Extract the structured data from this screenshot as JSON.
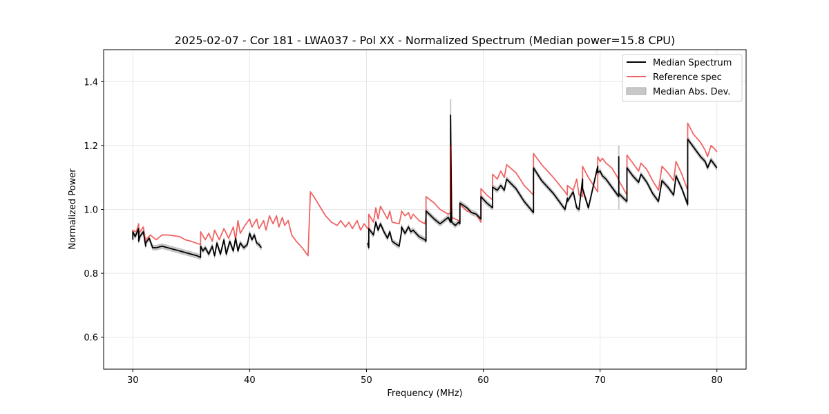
{
  "chart_data": {
    "type": "line",
    "title": "2025-02-07 - Cor 181 - LWA037 - Pol XX - Normalized Spectrum (Median power=15.8 CPU)",
    "xlabel": "Frequency (MHz)",
    "ylabel": "Normalized Power",
    "xlim": [
      27.5,
      82.5
    ],
    "ylim": [
      0.5,
      1.5
    ],
    "xticks": [
      30,
      40,
      50,
      60,
      70,
      80
    ],
    "yticks": [
      0.6,
      0.8,
      1.0,
      1.2,
      1.4
    ],
    "xtick_labels": [
      "30",
      "40",
      "50",
      "60",
      "70",
      "80"
    ],
    "ytick_labels": [
      "0.6",
      "0.8",
      "1.0",
      "1.2",
      "1.4"
    ],
    "grid": true,
    "legend_position": "top-right",
    "legend": [
      "Median Spectrum",
      "Reference spec",
      "Median Abs. Dev."
    ],
    "colors": {
      "median": "#000000",
      "reference": "#f06464",
      "mad": "#c8c8c8"
    },
    "series": [
      {
        "name": "Reference spec",
        "x": [
          30.0,
          30.0,
          30.3,
          30.5,
          30.5,
          30.6,
          30.9,
          31.1,
          31.1,
          31.5,
          32.0,
          32.5,
          33.0,
          34.0,
          34.5,
          35.0,
          35.8,
          35.8,
          36.2,
          36.5,
          36.8,
          37.0,
          37.4,
          37.8,
          38.2,
          38.6,
          38.8,
          39.0,
          39.2,
          39.6,
          40.0,
          40.2,
          40.6,
          40.8,
          41.2,
          41.4,
          41.7,
          42.0,
          42.3,
          42.5,
          42.8,
          43.0,
          43.3,
          43.6,
          44.0,
          44.5,
          45.0,
          45.2,
          45.2,
          45.5,
          46.0,
          46.5,
          47.0,
          47.5,
          47.8,
          48.2,
          48.5,
          48.8,
          49.2,
          49.5,
          49.8,
          50.1,
          50.2,
          50.2,
          50.6,
          50.8,
          51.0,
          51.2,
          51.5,
          51.8,
          52.0,
          52.2,
          52.8,
          53.0,
          53.0,
          53.3,
          53.6,
          53.8,
          54.0,
          54.5,
          55.0,
          55.1,
          55.1,
          55.8,
          56.3,
          57.0,
          57.2,
          57.2,
          57.3,
          57.6,
          57.9,
          58.0,
          58.0,
          58.6,
          59.0,
          59.4,
          59.8,
          59.8,
          60.3,
          60.8,
          60.8,
          61.2,
          61.5,
          61.8,
          62.0,
          62.8,
          63.5,
          64.3,
          64.3,
          65.0,
          66.0,
          67.0,
          67.2,
          67.2,
          67.7,
          68.0,
          68.2,
          68.5,
          68.5,
          69.0,
          69.8,
          69.8,
          70.0,
          70.2,
          70.5,
          71.0,
          71.5,
          71.6,
          72.0,
          72.3,
          72.3,
          72.8,
          73.3,
          73.5,
          74.0,
          74.5,
          75.0,
          75.3,
          75.8,
          76.3,
          76.5,
          77.0,
          77.5,
          77.5,
          78.0,
          78.6,
          79.0,
          79.2,
          79.5,
          79.8,
          80.0
        ],
        "y": [
          0.925,
          0.935,
          0.93,
          0.955,
          0.92,
          0.93,
          0.945,
          0.9,
          0.905,
          0.92,
          0.905,
          0.92,
          0.92,
          0.915,
          0.905,
          0.9,
          0.89,
          0.93,
          0.905,
          0.925,
          0.9,
          0.935,
          0.905,
          0.94,
          0.91,
          0.945,
          0.905,
          0.965,
          0.925,
          0.95,
          0.97,
          0.945,
          0.97,
          0.94,
          0.965,
          0.935,
          0.98,
          0.955,
          0.98,
          0.945,
          0.975,
          0.95,
          0.965,
          0.92,
          0.9,
          0.88,
          0.855,
          1.055,
          1.055,
          1.04,
          1.01,
          0.98,
          0.96,
          0.95,
          0.965,
          0.945,
          0.96,
          0.94,
          0.965,
          0.935,
          0.955,
          0.94,
          0.945,
          0.985,
          0.96,
          1.005,
          0.97,
          1.01,
          0.99,
          0.97,
          0.995,
          0.96,
          0.955,
          0.99,
          0.995,
          0.98,
          0.99,
          0.97,
          0.985,
          0.965,
          0.955,
          0.975,
          1.04,
          1.02,
          1.0,
          0.985,
          0.99,
          1.2,
          0.975,
          0.97,
          0.965,
          0.96,
          1.015,
          0.995,
          0.99,
          0.985,
          0.96,
          1.065,
          1.045,
          1.03,
          1.11,
          1.095,
          1.12,
          1.1,
          1.14,
          1.115,
          1.075,
          1.045,
          1.175,
          1.14,
          1.1,
          1.055,
          1.045,
          1.075,
          1.06,
          1.095,
          1.045,
          1.04,
          1.135,
          1.1,
          1.055,
          1.165,
          1.15,
          1.16,
          1.145,
          1.13,
          1.1,
          1.09,
          1.065,
          1.045,
          1.17,
          1.145,
          1.12,
          1.145,
          1.125,
          1.09,
          1.06,
          1.135,
          1.115,
          1.09,
          1.15,
          1.11,
          1.06,
          1.27,
          1.235,
          1.21,
          1.185,
          1.165,
          1.2,
          1.19,
          1.18
        ]
      },
      {
        "name": "Median Spectrum",
        "segments": [
          {
            "x": [
              30.0,
              30.0,
              30.2,
              30.5,
              30.5,
              30.6,
              30.9,
              31.1,
              31.1,
              31.4,
              31.7,
              32.0,
              32.5,
              33.0,
              33.5,
              34.0,
              34.5,
              35.0,
              35.5,
              35.8,
              35.8,
              36.0,
              36.2,
              36.5,
              36.8,
              37.0,
              37.2,
              37.5,
              37.8,
              38.0,
              38.3,
              38.6,
              38.8,
              39.0,
              39.2,
              39.5,
              39.8,
              40.0,
              40.2,
              40.4,
              40.6,
              40.8,
              41.0
            ],
            "y": [
              0.905,
              0.93,
              0.915,
              0.94,
              0.9,
              0.915,
              0.93,
              0.885,
              0.895,
              0.91,
              0.88,
              0.88,
              0.885,
              0.88,
              0.875,
              0.87,
              0.865,
              0.86,
              0.855,
              0.85,
              0.885,
              0.87,
              0.88,
              0.86,
              0.885,
              0.855,
              0.895,
              0.86,
              0.905,
              0.86,
              0.9,
              0.87,
              0.91,
              0.87,
              0.895,
              0.88,
              0.89,
              0.925,
              0.905,
              0.92,
              0.895,
              0.89,
              0.88
            ]
          },
          {
            "x": [
              50.1,
              50.2,
              50.2,
              50.6,
              50.8,
              51.0,
              51.2,
              51.5,
              51.8,
              52.0,
              52.2,
              52.8,
              53.0,
              53.0,
              53.3,
              53.6,
              53.8,
              54.0,
              54.5,
              55.0,
              55.1,
              55.1,
              55.8,
              56.3,
              57.0,
              57.2,
              57.2,
              57.3,
              57.6,
              57.9,
              58.0,
              58.0,
              58.6,
              59.0,
              59.4,
              59.8,
              59.8,
              60.3,
              60.8,
              60.8,
              61.2,
              61.5,
              61.8,
              62.0,
              62.8,
              63.5,
              64.3,
              64.3,
              65.0,
              66.0,
              67.0,
              67.2,
              67.2,
              67.7,
              68.0,
              68.2,
              68.5,
              68.5,
              69.0,
              69.8,
              69.8,
              70.0,
              70.2,
              70.5,
              71.0,
              71.5,
              71.6,
              71.6,
              71.6,
              72.0,
              72.3,
              72.3,
              72.8,
              73.3,
              73.5,
              74.0,
              74.5,
              75.0,
              75.3,
              75.8,
              76.3,
              76.5,
              77.0,
              77.5,
              77.5,
              78.0,
              78.6,
              79.0,
              79.2,
              79.5,
              79.8,
              80.0
            ],
            "y": [
              0.895,
              0.88,
              0.94,
              0.92,
              0.96,
              0.935,
              0.955,
              0.93,
              0.91,
              0.93,
              0.9,
              0.885,
              0.93,
              0.945,
              0.925,
              0.945,
              0.93,
              0.935,
              0.915,
              0.905,
              0.9,
              0.995,
              0.97,
              0.955,
              0.975,
              0.96,
              1.295,
              0.96,
              0.95,
              0.96,
              0.955,
              1.02,
              1.005,
              0.99,
              0.985,
              0.97,
              1.04,
              1.02,
              1.005,
              1.07,
              1.06,
              1.075,
              1.06,
              1.095,
              1.065,
              1.025,
              0.99,
              1.13,
              1.09,
              1.05,
              1.0,
              1.035,
              1.025,
              1.055,
              1.005,
              1.0,
              1.095,
              1.065,
              1.005,
              1.135,
              1.115,
              1.12,
              1.105,
              1.095,
              1.07,
              1.045,
              1.04,
              1.165,
              1.05,
              1.035,
              1.025,
              1.13,
              1.105,
              1.085,
              1.11,
              1.085,
              1.05,
              1.025,
              1.09,
              1.07,
              1.045,
              1.105,
              1.065,
              1.015,
              1.22,
              1.195,
              1.165,
              1.15,
              1.13,
              1.155,
              1.14,
              1.13
            ]
          }
        ]
      },
      {
        "name": "Median Abs. Dev.",
        "width": 0.008,
        "spikes": [
          {
            "x": 57.2,
            "y": 1.345
          },
          {
            "x": 71.6,
            "y": 1.2
          }
        ]
      }
    ]
  }
}
